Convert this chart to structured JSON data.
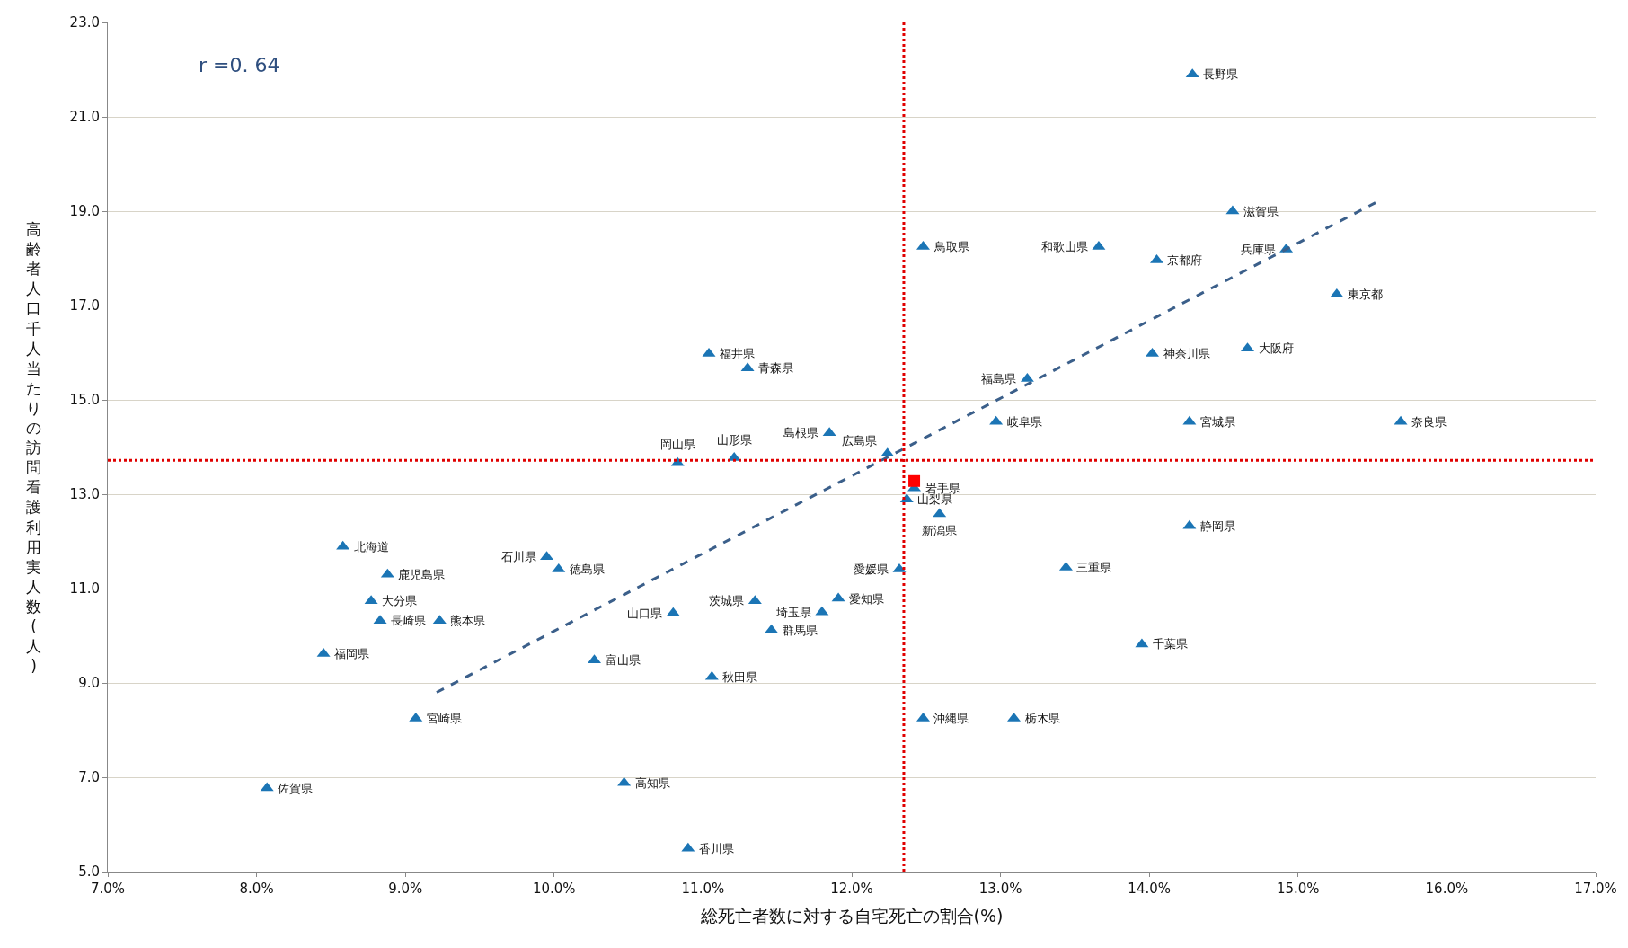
{
  "chart_data": {
    "type": "scatter",
    "xlabel": "総死亡者数に対する自宅死亡の割合(%)",
    "ylabel": "高齢者人口千人当たりの訪問看護利用実人数(人)",
    "xlim": [
      7,
      17
    ],
    "xticks": [
      {
        "value": 7,
        "label": "7.0%"
      },
      {
        "value": 8,
        "label": "8.0%"
      },
      {
        "value": 9,
        "label": "9.0%"
      },
      {
        "value": 10,
        "label": "10.0%"
      },
      {
        "value": 11,
        "label": "11.0%"
      },
      {
        "value": 12,
        "label": "12.0%"
      },
      {
        "value": 13,
        "label": "13.0%"
      },
      {
        "value": 14,
        "label": "14.0%"
      },
      {
        "value": 15,
        "label": "15.0%"
      },
      {
        "value": 16,
        "label": "16.0%"
      },
      {
        "value": 17,
        "label": "17.0%"
      }
    ],
    "ylim": [
      5,
      23
    ],
    "yticks": [
      {
        "value": 5,
        "label": "5.0"
      },
      {
        "value": 7,
        "label": "7.0"
      },
      {
        "value": 9,
        "label": "9.0"
      },
      {
        "value": 11,
        "label": "11.0"
      },
      {
        "value": 13,
        "label": "13.0"
      },
      {
        "value": 15,
        "label": "15.0"
      },
      {
        "value": 17,
        "label": "17.0"
      },
      {
        "value": 19,
        "label": "19.0"
      },
      {
        "value": 21,
        "label": "21.0"
      },
      {
        "value": 23,
        "label": "23.0"
      }
    ],
    "grid": "y",
    "series": [
      {
        "color": "#1b75b5",
        "marker": "triangle",
        "x": [
          14.29,
          14.56,
          12.48,
          13.66,
          14.05,
          14.92,
          15.26,
          13.18,
          14.02,
          14.66,
          14.27,
          15.69,
          12.97,
          12.24,
          11.85,
          10.83,
          11.21,
          11.04,
          11.3,
          12.42,
          12.37,
          12.59,
          14.27,
          12.32,
          13.44,
          13.95,
          13.09,
          12.48,
          11.91,
          11.8,
          11.46,
          11.35,
          10.8,
          11.06,
          10.27,
          9.95,
          10.03,
          8.58,
          8.88,
          8.77,
          8.83,
          9.23,
          8.45,
          9.07,
          8.07,
          10.47,
          10.9
        ],
        "values": [
          21.9,
          19.0,
          18.25,
          18.25,
          17.96,
          18.19,
          17.24,
          15.45,
          15.98,
          16.09,
          14.54,
          14.54,
          14.54,
          13.86,
          14.3,
          13.66,
          13.77,
          15.98,
          15.67,
          13.13,
          12.89,
          12.58,
          12.33,
          11.41,
          11.45,
          9.82,
          8.25,
          8.25,
          10.79,
          10.5,
          10.12,
          10.74,
          10.48,
          9.13,
          9.48,
          11.67,
          11.41,
          11.89,
          11.3,
          10.74,
          10.32,
          10.32,
          9.62,
          8.25,
          6.77,
          6.88,
          5.49
        ]
      },
      {
        "color": "#ff0000",
        "marker": "square",
        "x": [
          12.42
        ],
        "values": [
          13.28
        ]
      },
      {
        "type": "line",
        "color": "#3b5f8a",
        "line_style": "dashed",
        "x": [
          9.21,
          15.52
        ],
        "values": [
          8.8,
          19.18
        ]
      }
    ],
    "ref_lines": [
      {
        "axis": "x",
        "value": 12.35,
        "color": "#e00000",
        "line_style": "dotted"
      },
      {
        "axis": "y",
        "value": 13.72,
        "color": "#e00000",
        "line_style": "dotted"
      }
    ],
    "annotations": [
      "r =0. 64",
      {
        "text": "長野県",
        "x": 14.29,
        "y": 21.9
      },
      {
        "text": "滋賀県",
        "x": 14.56,
        "y": 19.0
      },
      {
        "text": "鳥取県",
        "x": 12.48,
        "y": 18.25
      },
      {
        "text": "和歌山県",
        "x": 13.66,
        "y": 18.25
      },
      {
        "text": "京都府",
        "x": 14.05,
        "y": 17.96
      },
      {
        "text": "兵庫県",
        "x": 14.92,
        "y": 18.19
      },
      {
        "text": "東京都",
        "x": 15.26,
        "y": 17.24
      },
      {
        "text": "福島県",
        "x": 13.18,
        "y": 15.45
      },
      {
        "text": "神奈川県",
        "x": 14.02,
        "y": 15.98
      },
      {
        "text": "大阪府",
        "x": 14.66,
        "y": 16.09
      },
      {
        "text": "宮城県",
        "x": 14.27,
        "y": 14.54
      },
      {
        "text": "奈良県",
        "x": 15.69,
        "y": 14.54
      },
      {
        "text": "岐阜県",
        "x": 12.97,
        "y": 14.54
      },
      {
        "text": "広島県",
        "x": 12.24,
        "y": 13.86
      },
      {
        "text": "島根県",
        "x": 11.85,
        "y": 14.3
      },
      {
        "text": "岡山県",
        "x": 10.83,
        "y": 13.66
      },
      {
        "text": "山形県",
        "x": 11.21,
        "y": 13.77
      },
      {
        "text": "福井県",
        "x": 11.04,
        "y": 15.98
      },
      {
        "text": "青森県",
        "x": 11.3,
        "y": 15.67
      },
      {
        "text": "岩手県",
        "x": 12.42,
        "y": 13.13
      },
      {
        "text": "山梨県",
        "x": 12.37,
        "y": 12.89
      },
      {
        "text": "新潟県",
        "x": 12.59,
        "y": 12.58
      },
      {
        "text": "静岡県",
        "x": 14.27,
        "y": 12.33
      },
      {
        "text": "愛媛県",
        "x": 12.32,
        "y": 11.41
      },
      {
        "text": "三重県",
        "x": 13.44,
        "y": 11.45
      },
      {
        "text": "千葉県",
        "x": 13.95,
        "y": 9.82
      },
      {
        "text": "栃木県",
        "x": 13.09,
        "y": 8.25
      },
      {
        "text": "沖縄県",
        "x": 12.48,
        "y": 8.25
      },
      {
        "text": "愛知県",
        "x": 11.91,
        "y": 10.79
      },
      {
        "text": "埼玉県",
        "x": 11.8,
        "y": 10.5
      },
      {
        "text": "群馬県",
        "x": 11.46,
        "y": 10.12
      },
      {
        "text": "茨城県",
        "x": 11.35,
        "y": 10.74
      },
      {
        "text": "山口県",
        "x": 10.8,
        "y": 10.48
      },
      {
        "text": "秋田県",
        "x": 11.06,
        "y": 9.13
      },
      {
        "text": "富山県",
        "x": 10.27,
        "y": 9.48
      },
      {
        "text": "石川県",
        "x": 9.95,
        "y": 11.67
      },
      {
        "text": "徳島県",
        "x": 10.03,
        "y": 11.41
      },
      {
        "text": "北海道",
        "x": 8.58,
        "y": 11.89
      },
      {
        "text": "鹿児島県",
        "x": 8.88,
        "y": 11.3
      },
      {
        "text": "大分県",
        "x": 8.77,
        "y": 10.74
      },
      {
        "text": "長崎県",
        "x": 8.83,
        "y": 10.32
      },
      {
        "text": "熊本県",
        "x": 9.23,
        "y": 10.32
      },
      {
        "text": "福岡県",
        "x": 8.45,
        "y": 9.62
      },
      {
        "text": "宮崎県",
        "x": 9.07,
        "y": 8.25
      },
      {
        "text": "佐賀県",
        "x": 8.07,
        "y": 6.77
      },
      {
        "text": "高知県",
        "x": 10.47,
        "y": 6.88
      },
      {
        "text": "香川県",
        "x": 10.9,
        "y": 5.49
      }
    ]
  }
}
